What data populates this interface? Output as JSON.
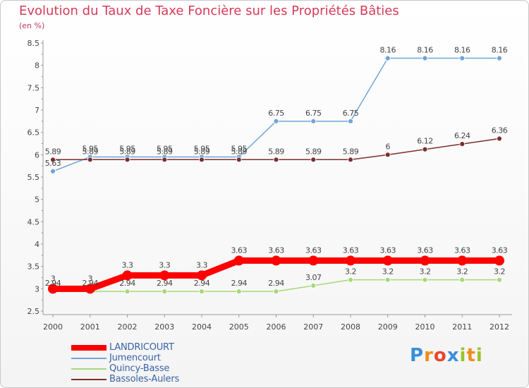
{
  "title": "Evolution du Taux de Taxe Foncière sur les Propriétés Bâties",
  "unit_label": "(en %)",
  "logo": {
    "text": "Proxiti",
    "letters": [
      "P",
      "r",
      "o",
      "x",
      "i",
      "t",
      "i"
    ],
    "colors": [
      "#3a8fd6",
      "#f08c1c",
      "#e8452d",
      "#3a8fd6",
      "#9bc22a",
      "#f08c1c",
      "#9bc22a"
    ]
  },
  "chart_data": {
    "type": "line",
    "title": "Evolution du Taux de Taxe Foncière sur les Propriétés Bâties",
    "ylabel": "(en %)",
    "xlabel": "",
    "x": [
      "2000",
      "2001",
      "2002",
      "2003",
      "2004",
      "2005",
      "2006",
      "2007",
      "2008",
      "2009",
      "2010",
      "2011",
      "2012"
    ],
    "ylim": [
      2.5,
      8.5
    ],
    "yticks": [
      "2.5",
      "3",
      "3.5",
      "4",
      "4.5",
      "5",
      "5.5",
      "6",
      "6.5",
      "7",
      "7.5",
      "8",
      "8.5"
    ],
    "grid": false,
    "legend_position": "bottom-left",
    "series": [
      {
        "name": "LANDRICOURT",
        "color": "#ff0000",
        "emphasis": true,
        "values": [
          3,
          3,
          3.3,
          3.3,
          3.3,
          3.63,
          3.63,
          3.63,
          3.63,
          3.63,
          3.63,
          3.63,
          3.63
        ],
        "labels": [
          "3",
          "3",
          "3.3",
          "3.3",
          "3.3",
          "3.63",
          "3.63",
          "3.63",
          "3.63",
          "3.63",
          "3.63",
          "3.63",
          "3.63"
        ]
      },
      {
        "name": "Jumencourt",
        "color": "#6fa5d8",
        "emphasis": false,
        "values": [
          5.63,
          5.95,
          5.95,
          5.95,
          5.95,
          5.95,
          6.75,
          6.75,
          6.75,
          8.16,
          8.16,
          8.16,
          8.16
        ],
        "labels": [
          "5.63",
          "5.95",
          "5.95",
          "5.95",
          "5.95",
          "5.95",
          "6.75",
          "6.75",
          "6.75",
          "8.16",
          "8.16",
          "8.16",
          "8.16"
        ]
      },
      {
        "name": "Quincy-Basse",
        "color": "#a6d77c",
        "emphasis": false,
        "values": [
          2.94,
          2.94,
          2.94,
          2.94,
          2.94,
          2.94,
          2.94,
          3.07,
          3.2,
          3.2,
          3.2,
          3.2,
          3.2
        ],
        "labels": [
          "2.94",
          "2.94",
          "2.94",
          "2.94",
          "2.94",
          "2.94",
          "2.94",
          "3.07",
          "3.2",
          "3.2",
          "3.2",
          "3.2",
          "3.2"
        ]
      },
      {
        "name": "Bassoles-Aulers",
        "color": "#7b2e2e",
        "emphasis": false,
        "values": [
          5.89,
          5.89,
          5.89,
          5.89,
          5.89,
          5.89,
          5.89,
          5.89,
          5.89,
          6,
          6.12,
          6.24,
          6.36
        ],
        "labels": [
          "5.89",
          "5.89",
          "5.89",
          "5.89",
          "5.89",
          "5.89",
          "5.89",
          "5.89",
          "5.89",
          "6",
          "6.12",
          "6.24",
          "6.36"
        ]
      }
    ]
  }
}
